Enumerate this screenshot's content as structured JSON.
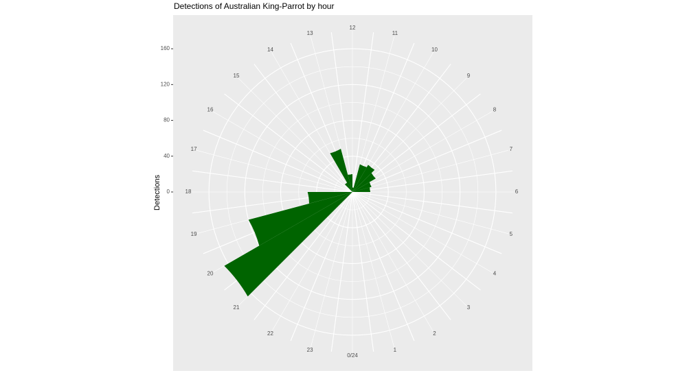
{
  "chart_data": {
    "type": "bar",
    "coordinate_system": "polar",
    "title": "Detections of Australian King-Parrot by hour",
    "xlabel": "",
    "ylabel": "Detections",
    "fill_color": "#006400",
    "panel_background": "#EBEBEB",
    "grid": true,
    "legend": "none",
    "ylim": [
      0,
      180
    ],
    "y_ticks": [
      0,
      40,
      80,
      120,
      160
    ],
    "hour_labels": [
      "0/24",
      "1",
      "2",
      "3",
      "4",
      "5",
      "6",
      "7",
      "8",
      "9",
      "10",
      "11",
      "12",
      "13",
      "14",
      "15",
      "16",
      "17",
      "18",
      "19",
      "20",
      "21",
      "22",
      "23"
    ],
    "categories": [
      0,
      1,
      2,
      3,
      4,
      5,
      6,
      7,
      8,
      9,
      10,
      11,
      12,
      13,
      14,
      15,
      16,
      17,
      18,
      19,
      20,
      21,
      22,
      23
    ],
    "values": [
      0,
      0,
      0,
      0,
      0,
      0,
      20,
      22,
      30,
      35,
      32,
      5,
      20,
      50,
      12,
      0,
      0,
      0,
      50,
      120,
      165,
      0,
      0,
      0
    ]
  }
}
